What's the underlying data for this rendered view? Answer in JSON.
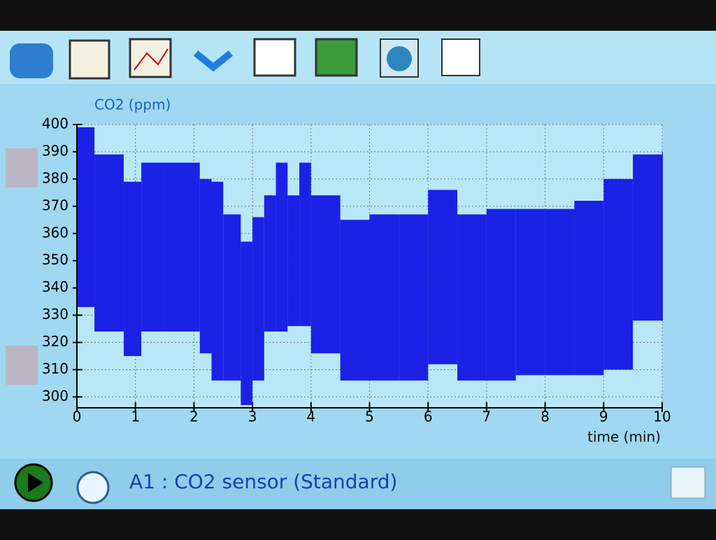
{
  "chart_data": {
    "type": "range",
    "ylabel": "CO2 (ppm)",
    "xlabel": "time (min)",
    "x": [
      0,
      0.3,
      0.8,
      1.1,
      1.5,
      2.1,
      2.3,
      2.5,
      2.8,
      3.0,
      3.2,
      3.4,
      3.6,
      3.8,
      4.0,
      4.5,
      5.0,
      5.5,
      6.0,
      6.5,
      7.0,
      7.5,
      8.0,
      8.5,
      9.0,
      9.5,
      10
    ],
    "high": [
      399,
      389,
      379,
      386,
      386,
      380,
      379,
      367,
      357,
      366,
      374,
      386,
      374,
      386,
      374,
      365,
      367,
      367,
      376,
      367,
      369,
      369,
      369,
      372,
      380,
      389,
      390
    ],
    "low": [
      333,
      324,
      315,
      324,
      324,
      316,
      306,
      306,
      297,
      306,
      324,
      324,
      326,
      326,
      316,
      306,
      306,
      306,
      312,
      306,
      306,
      308,
      308,
      308,
      310,
      328,
      328
    ],
    "color": "#1a22e6",
    "xlim": [
      0,
      10
    ],
    "ylim": [
      296,
      400
    ],
    "xticks": [
      0,
      1,
      2,
      3,
      4,
      5,
      6,
      7,
      8,
      9,
      10
    ],
    "yticks": [
      300,
      310,
      320,
      330,
      340,
      350,
      360,
      370,
      380,
      390,
      400
    ],
    "grid": true
  },
  "status_bar": {
    "sensor": "A1 : CO2 sensor (Standard)"
  }
}
